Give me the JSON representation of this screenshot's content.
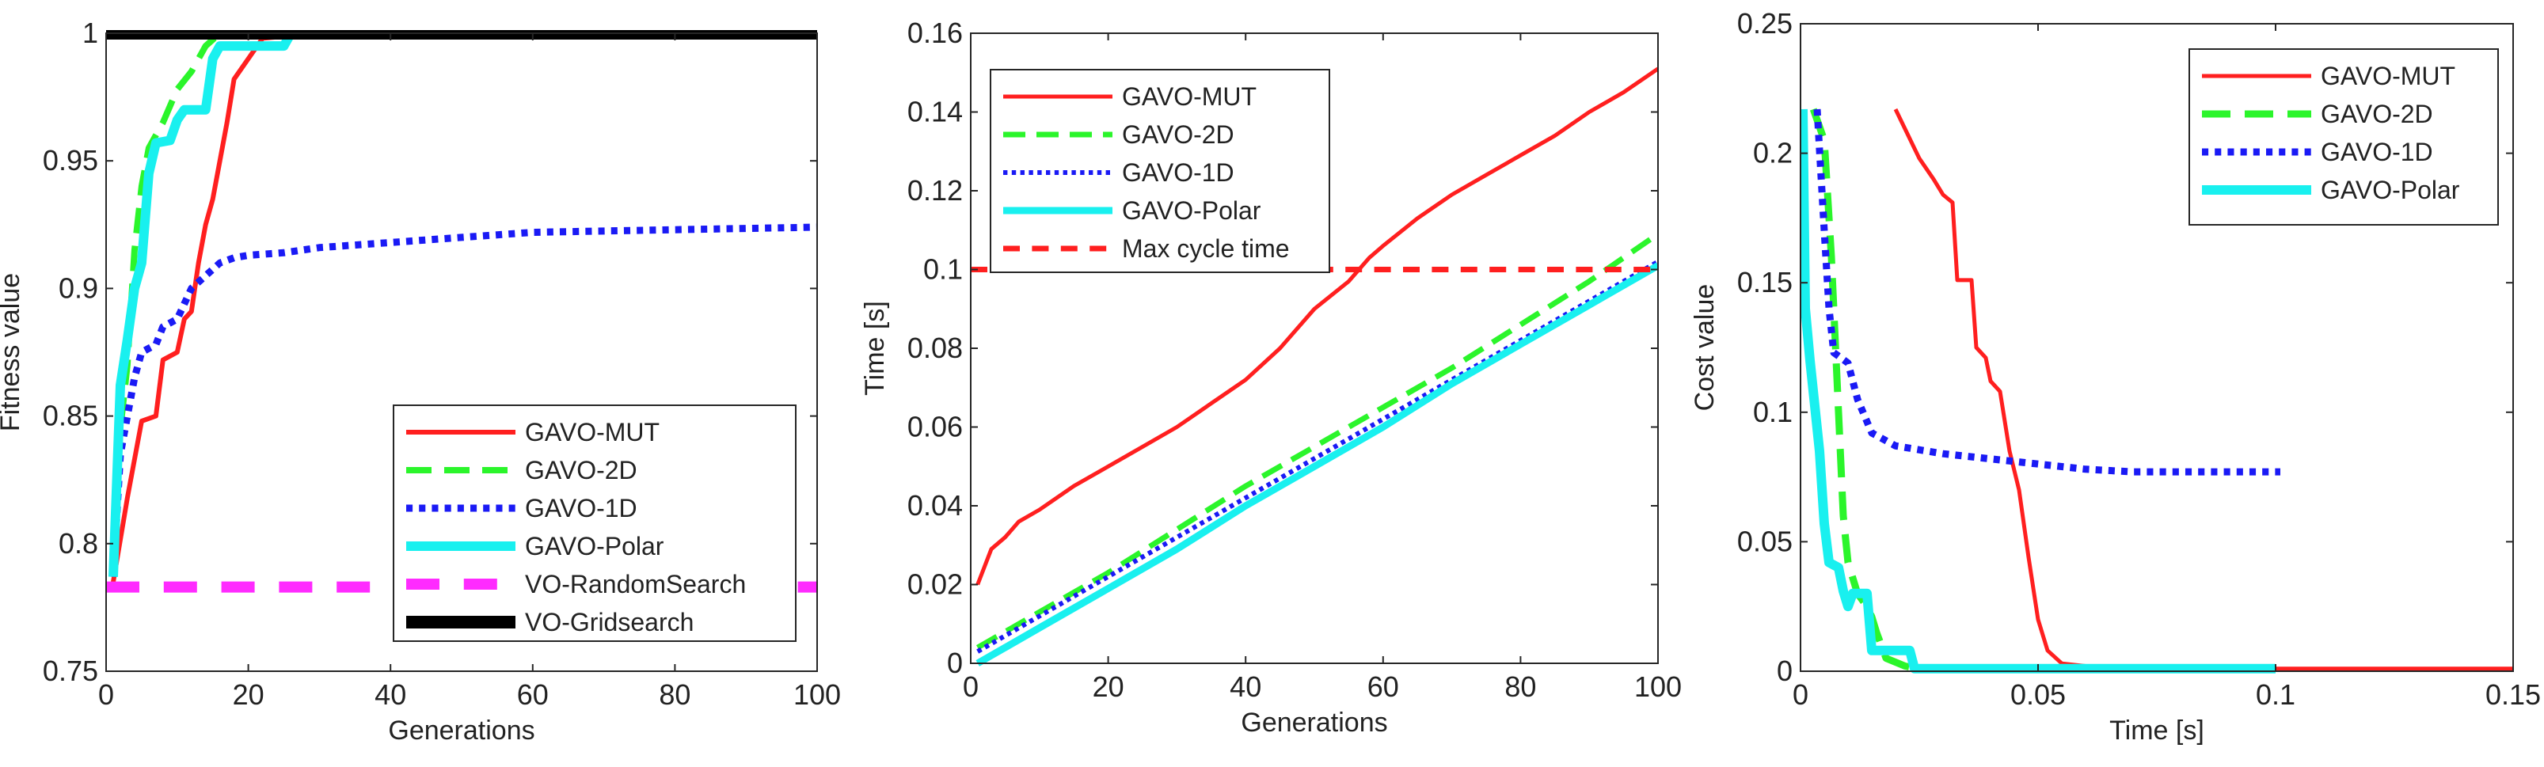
{
  "colors": {
    "red": "#ff1f1f",
    "green": "#2bf52b",
    "blue": "#1a1af5",
    "cyan": "#19f0ef",
    "magenta": "#ff2bff",
    "black": "#000000"
  },
  "chart_data": [
    {
      "type": "line",
      "xlabel": "Generations",
      "ylabel": "Fitness value",
      "xlim": [
        0,
        100
      ],
      "ylim": [
        0.75,
        1
      ],
      "xticks": [
        "0",
        "20",
        "40",
        "60",
        "80",
        "100"
      ],
      "yticks": [
        "0.75",
        "0.8",
        "0.85",
        "0.9",
        "0.95",
        "1"
      ],
      "legend_position": "bottom-right",
      "series": [
        {
          "name": "GAVO-MUT",
          "color": "red",
          "style": "solid",
          "width": 6,
          "points": [
            [
              1,
              0.785
            ],
            [
              3,
              0.818
            ],
            [
              5,
              0.848
            ],
            [
              7,
              0.85
            ],
            [
              8,
              0.872
            ],
            [
              10,
              0.875
            ],
            [
              11,
              0.888
            ],
            [
              12,
              0.891
            ],
            [
              13,
              0.91
            ],
            [
              14,
              0.925
            ],
            [
              15,
              0.935
            ],
            [
              17,
              0.965
            ],
            [
              18,
              0.982
            ],
            [
              20,
              0.99
            ],
            [
              22,
              0.998
            ],
            [
              30,
              1.0
            ],
            [
              100,
              1.0
            ]
          ]
        },
        {
          "name": "GAVO-2D",
          "color": "green",
          "style": "dashed",
          "width": 8,
          "points": [
            [
              1,
              0.788
            ],
            [
              2,
              0.845
            ],
            [
              3,
              0.87
            ],
            [
              4,
              0.915
            ],
            [
              5,
              0.94
            ],
            [
              6,
              0.955
            ],
            [
              8,
              0.965
            ],
            [
              10,
              0.978
            ],
            [
              12,
              0.985
            ],
            [
              14,
              0.995
            ],
            [
              16,
              1.0
            ],
            [
              100,
              1.0
            ]
          ]
        },
        {
          "name": "GAVO-1D",
          "color": "blue",
          "style": "dotted",
          "width": 9,
          "points": [
            [
              1,
              0.787
            ],
            [
              2,
              0.835
            ],
            [
              3,
              0.85
            ],
            [
              4,
              0.865
            ],
            [
              5,
              0.875
            ],
            [
              7,
              0.878
            ],
            [
              8,
              0.885
            ],
            [
              10,
              0.888
            ],
            [
              12,
              0.9
            ],
            [
              14,
              0.905
            ],
            [
              16,
              0.91
            ],
            [
              18,
              0.912
            ],
            [
              20,
              0.913
            ],
            [
              25,
              0.914
            ],
            [
              30,
              0.916
            ],
            [
              40,
              0.918
            ],
            [
              50,
              0.92
            ],
            [
              60,
              0.922
            ],
            [
              80,
              0.923
            ],
            [
              100,
              0.924
            ]
          ]
        },
        {
          "name": "GAVO-Polar",
          "color": "cyan",
          "style": "solid",
          "width": 12,
          "points": [
            [
              1,
              0.787
            ],
            [
              2,
              0.862
            ],
            [
              3,
              0.88
            ],
            [
              4,
              0.9
            ],
            [
              5,
              0.91
            ],
            [
              6,
              0.945
            ],
            [
              7,
              0.957
            ],
            [
              9,
              0.958
            ],
            [
              10,
              0.966
            ],
            [
              11,
              0.97
            ],
            [
              14,
              0.97
            ],
            [
              15,
              0.99
            ],
            [
              16,
              0.995
            ],
            [
              20,
              0.995
            ],
            [
              25,
              0.995
            ],
            [
              26,
              1.0
            ],
            [
              100,
              1.0
            ]
          ]
        },
        {
          "name": "VO-RandomSearch",
          "color": "magenta",
          "style": "dashed-long",
          "width": 14,
          "points": [
            [
              0,
              0.783
            ],
            [
              100,
              0.783
            ]
          ]
        },
        {
          "name": "VO-Gridsearch",
          "color": "black",
          "style": "solid",
          "width": 16,
          "points": [
            [
              0,
              1.0
            ],
            [
              100,
              1.0
            ]
          ]
        }
      ]
    },
    {
      "type": "line",
      "xlabel": "Generations",
      "ylabel": "Time [s]",
      "xlim": [
        0,
        100
      ],
      "ylim": [
        0,
        0.16
      ],
      "xticks": [
        "0",
        "20",
        "40",
        "60",
        "80",
        "100"
      ],
      "yticks": [
        "0",
        "0.02",
        "0.04",
        "0.06",
        "0.08",
        "0.1",
        "0.12",
        "0.14",
        "0.16"
      ],
      "legend_position": "top-left",
      "series": [
        {
          "name": "GAVO-MUT",
          "color": "red",
          "style": "solid",
          "width": 5,
          "points": [
            [
              1,
              0.02
            ],
            [
              3,
              0.029
            ],
            [
              5,
              0.032
            ],
            [
              7,
              0.036
            ],
            [
              10,
              0.039
            ],
            [
              15,
              0.045
            ],
            [
              20,
              0.05
            ],
            [
              25,
              0.055
            ],
            [
              30,
              0.06
            ],
            [
              35,
              0.066
            ],
            [
              40,
              0.072
            ],
            [
              45,
              0.08
            ],
            [
              50,
              0.09
            ],
            [
              55,
              0.097
            ],
            [
              58,
              0.103
            ],
            [
              60,
              0.106
            ],
            [
              65,
              0.113
            ],
            [
              70,
              0.119
            ],
            [
              75,
              0.124
            ],
            [
              80,
              0.129
            ],
            [
              85,
              0.134
            ],
            [
              90,
              0.14
            ],
            [
              95,
              0.145
            ],
            [
              100,
              0.151
            ]
          ]
        },
        {
          "name": "GAVO-2D",
          "color": "green",
          "style": "dashed",
          "width": 7,
          "points": [
            [
              1,
              0.004
            ],
            [
              10,
              0.013
            ],
            [
              20,
              0.023
            ],
            [
              30,
              0.034
            ],
            [
              40,
              0.045
            ],
            [
              50,
              0.055
            ],
            [
              60,
              0.065
            ],
            [
              70,
              0.075
            ],
            [
              80,
              0.086
            ],
            [
              90,
              0.097
            ],
            [
              100,
              0.109
            ]
          ]
        },
        {
          "name": "GAVO-1D",
          "color": "blue",
          "style": "dotted",
          "width": 6,
          "points": [
            [
              1,
              0.003
            ],
            [
              10,
              0.012
            ],
            [
              20,
              0.022
            ],
            [
              30,
              0.032
            ],
            [
              40,
              0.042
            ],
            [
              50,
              0.052
            ],
            [
              60,
              0.062
            ],
            [
              70,
              0.072
            ],
            [
              80,
              0.082
            ],
            [
              90,
              0.092
            ],
            [
              100,
              0.102
            ]
          ]
        },
        {
          "name": "GAVO-Polar",
          "color": "cyan",
          "style": "solid",
          "width": 9,
          "points": [
            [
              1,
              0.0
            ],
            [
              10,
              0.009
            ],
            [
              20,
              0.019
            ],
            [
              30,
              0.029
            ],
            [
              40,
              0.04
            ],
            [
              50,
              0.05
            ],
            [
              60,
              0.06
            ],
            [
              70,
              0.071
            ],
            [
              80,
              0.081
            ],
            [
              90,
              0.091
            ],
            [
              100,
              0.101
            ]
          ]
        },
        {
          "name": "Max cycle time",
          "color": "red",
          "style": "dashed-long",
          "width": 7,
          "points": [
            [
              0,
              0.1
            ],
            [
              100,
              0.1
            ]
          ]
        }
      ]
    },
    {
      "type": "line",
      "xlabel": "Time [s]",
      "ylabel": "Cost value",
      "xlim": [
        0,
        0.15
      ],
      "ylim": [
        0,
        0.25
      ],
      "xticks": [
        "0",
        "0.05",
        "0.1",
        "0.15"
      ],
      "yticks": [
        "0",
        "0.05",
        "0.1",
        "0.15",
        "0.2",
        "0.25"
      ],
      "legend_position": "top-right",
      "series": [
        {
          "name": "GAVO-MUT",
          "color": "red",
          "style": "solid",
          "width": 5,
          "points": [
            [
              0.02,
              0.217
            ],
            [
              0.025,
              0.198
            ],
            [
              0.028,
              0.19
            ],
            [
              0.03,
              0.184
            ],
            [
              0.032,
              0.181
            ],
            [
              0.033,
              0.151
            ],
            [
              0.036,
              0.151
            ],
            [
              0.037,
              0.125
            ],
            [
              0.039,
              0.121
            ],
            [
              0.04,
              0.112
            ],
            [
              0.042,
              0.108
            ],
            [
              0.044,
              0.085
            ],
            [
              0.046,
              0.07
            ],
            [
              0.048,
              0.044
            ],
            [
              0.05,
              0.02
            ],
            [
              0.052,
              0.008
            ],
            [
              0.055,
              0.003
            ],
            [
              0.06,
              0.002
            ],
            [
              0.1,
              0.001
            ],
            [
              0.15,
              0.001
            ]
          ]
        },
        {
          "name": "GAVO-2D",
          "color": "green",
          "style": "dashed",
          "width": 9,
          "points": [
            [
              0.0027,
              0.217
            ],
            [
              0.005,
              0.205
            ],
            [
              0.0065,
              0.16
            ],
            [
              0.008,
              0.1
            ],
            [
              0.009,
              0.06
            ],
            [
              0.01,
              0.042
            ],
            [
              0.011,
              0.036
            ],
            [
              0.012,
              0.03
            ],
            [
              0.014,
              0.025
            ],
            [
              0.015,
              0.021
            ],
            [
              0.016,
              0.015
            ],
            [
              0.018,
              0.005
            ],
            [
              0.022,
              0.002
            ],
            [
              0.025,
              0.001
            ],
            [
              0.1,
              0.001
            ]
          ]
        },
        {
          "name": "GAVO-1D",
          "color": "blue",
          "style": "dotted",
          "width": 9,
          "points": [
            [
              0.0035,
              0.217
            ],
            [
              0.005,
              0.17
            ],
            [
              0.006,
              0.14
            ],
            [
              0.007,
              0.123
            ],
            [
              0.01,
              0.119
            ],
            [
              0.012,
              0.105
            ],
            [
              0.015,
              0.092
            ],
            [
              0.02,
              0.087
            ],
            [
              0.03,
              0.084
            ],
            [
              0.04,
              0.082
            ],
            [
              0.05,
              0.08
            ],
            [
              0.06,
              0.078
            ],
            [
              0.07,
              0.077
            ],
            [
              0.08,
              0.077
            ],
            [
              0.09,
              0.077
            ],
            [
              0.101,
              0.077
            ]
          ]
        },
        {
          "name": "GAVO-Polar",
          "color": "cyan",
          "style": "solid",
          "width": 12,
          "points": [
            [
              0.0005,
              0.217
            ],
            [
              0.001,
              0.14
            ],
            [
              0.002,
              0.12
            ],
            [
              0.004,
              0.085
            ],
            [
              0.005,
              0.057
            ],
            [
              0.006,
              0.042
            ],
            [
              0.008,
              0.04
            ],
            [
              0.009,
              0.031
            ],
            [
              0.01,
              0.025
            ],
            [
              0.011,
              0.03
            ],
            [
              0.014,
              0.03
            ],
            [
              0.015,
              0.008
            ],
            [
              0.02,
              0.008
            ],
            [
              0.023,
              0.008
            ],
            [
              0.024,
              0.001
            ],
            [
              0.05,
              0.001
            ],
            [
              0.1,
              0.001
            ]
          ]
        }
      ]
    }
  ]
}
